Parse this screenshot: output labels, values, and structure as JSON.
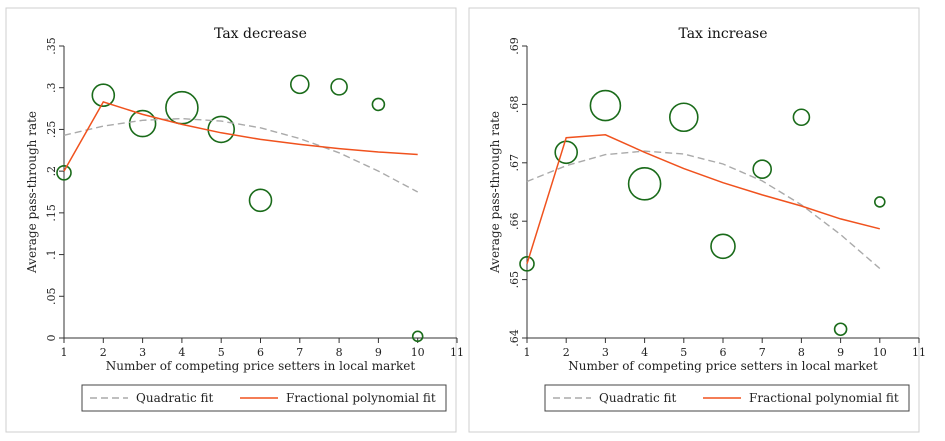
{
  "chart_data": [
    {
      "type": "scatter",
      "title": "Tax decrease",
      "xlabel": "Number of competing price setters in local market",
      "ylabel": "Average pass-through rate",
      "xlim": [
        1,
        11
      ],
      "ylim": [
        0,
        0.35
      ],
      "xticks": [
        1,
        2,
        3,
        4,
        5,
        6,
        7,
        8,
        9,
        10,
        11
      ],
      "yticks": [
        0,
        0.05,
        0.1,
        0.15,
        0.2,
        0.25,
        0.3,
        0.35
      ],
      "ytick_labels": [
        "0",
        ".05",
        ".1",
        ".15",
        ".2",
        ".25",
        ".3",
        ".35"
      ],
      "grid": false,
      "legend_position": "bottom",
      "points": {
        "x": [
          1,
          2,
          3,
          4,
          5,
          6,
          7,
          8,
          9,
          10
        ],
        "y": [
          0.198,
          0.291,
          0.257,
          0.276,
          0.25,
          0.165,
          0.304,
          0.301,
          0.28,
          0.002
        ],
        "size": [
          7,
          11,
          13,
          16,
          13,
          11,
          9,
          8,
          6,
          5
        ],
        "color": "#1a6b1a"
      },
      "series": [
        {
          "name": "Quadratic fit",
          "style": "dashed",
          "color": "#aaaaaa",
          "x": [
            1,
            2,
            3,
            4,
            5,
            6,
            7,
            8,
            9,
            10
          ],
          "y": [
            0.243,
            0.254,
            0.261,
            0.263,
            0.26,
            0.252,
            0.239,
            0.222,
            0.2,
            0.175
          ]
        },
        {
          "name": "Fractional polynomial fit",
          "style": "solid",
          "color": "#f0521e",
          "x": [
            1,
            2,
            3,
            4,
            5,
            6,
            7,
            8,
            9,
            10
          ],
          "y": [
            0.2,
            0.283,
            0.268,
            0.256,
            0.246,
            0.238,
            0.232,
            0.227,
            0.223,
            0.22
          ]
        }
      ]
    },
    {
      "type": "scatter",
      "title": "Tax increase",
      "xlabel": "Number of competing price setters in local market",
      "ylabel": "Average pass-through rate",
      "xlim": [
        1,
        11
      ],
      "ylim": [
        0.64,
        0.69
      ],
      "xticks": [
        1,
        2,
        3,
        4,
        5,
        6,
        7,
        8,
        9,
        10,
        11
      ],
      "yticks": [
        0.64,
        0.65,
        0.66,
        0.67,
        0.68,
        0.69
      ],
      "ytick_labels": [
        ".64",
        ".65",
        ".66",
        ".67",
        ".68",
        ".69"
      ],
      "grid": false,
      "legend_position": "bottom",
      "points": {
        "x": [
          1,
          2,
          3,
          4,
          5,
          6,
          7,
          8,
          9,
          10
        ],
        "y": [
          0.6527,
          0.6718,
          0.6798,
          0.6664,
          0.6778,
          0.6557,
          0.6689,
          0.6778,
          0.6415,
          0.6633
        ],
        "size": [
          7,
          11,
          15,
          16,
          14,
          12,
          9,
          8,
          6,
          5
        ],
        "color": "#1a6b1a"
      },
      "series": [
        {
          "name": "Quadratic fit",
          "style": "dashed",
          "color": "#aaaaaa",
          "x": [
            1,
            2,
            3,
            4,
            5,
            6,
            7,
            8,
            9,
            10
          ],
          "y": [
            0.6668,
            0.6695,
            0.6714,
            0.672,
            0.6715,
            0.6698,
            0.6669,
            0.6628,
            0.6577,
            0.6519
          ]
        },
        {
          "name": "Fractional polynomial fit",
          "style": "solid",
          "color": "#f0521e",
          "x": [
            1,
            2,
            3,
            4,
            5,
            6,
            7,
            8,
            9,
            10
          ],
          "y": [
            0.6527,
            0.6743,
            0.6748,
            0.6718,
            0.669,
            0.6666,
            0.6645,
            0.6626,
            0.6604,
            0.6587
          ]
        }
      ]
    }
  ]
}
